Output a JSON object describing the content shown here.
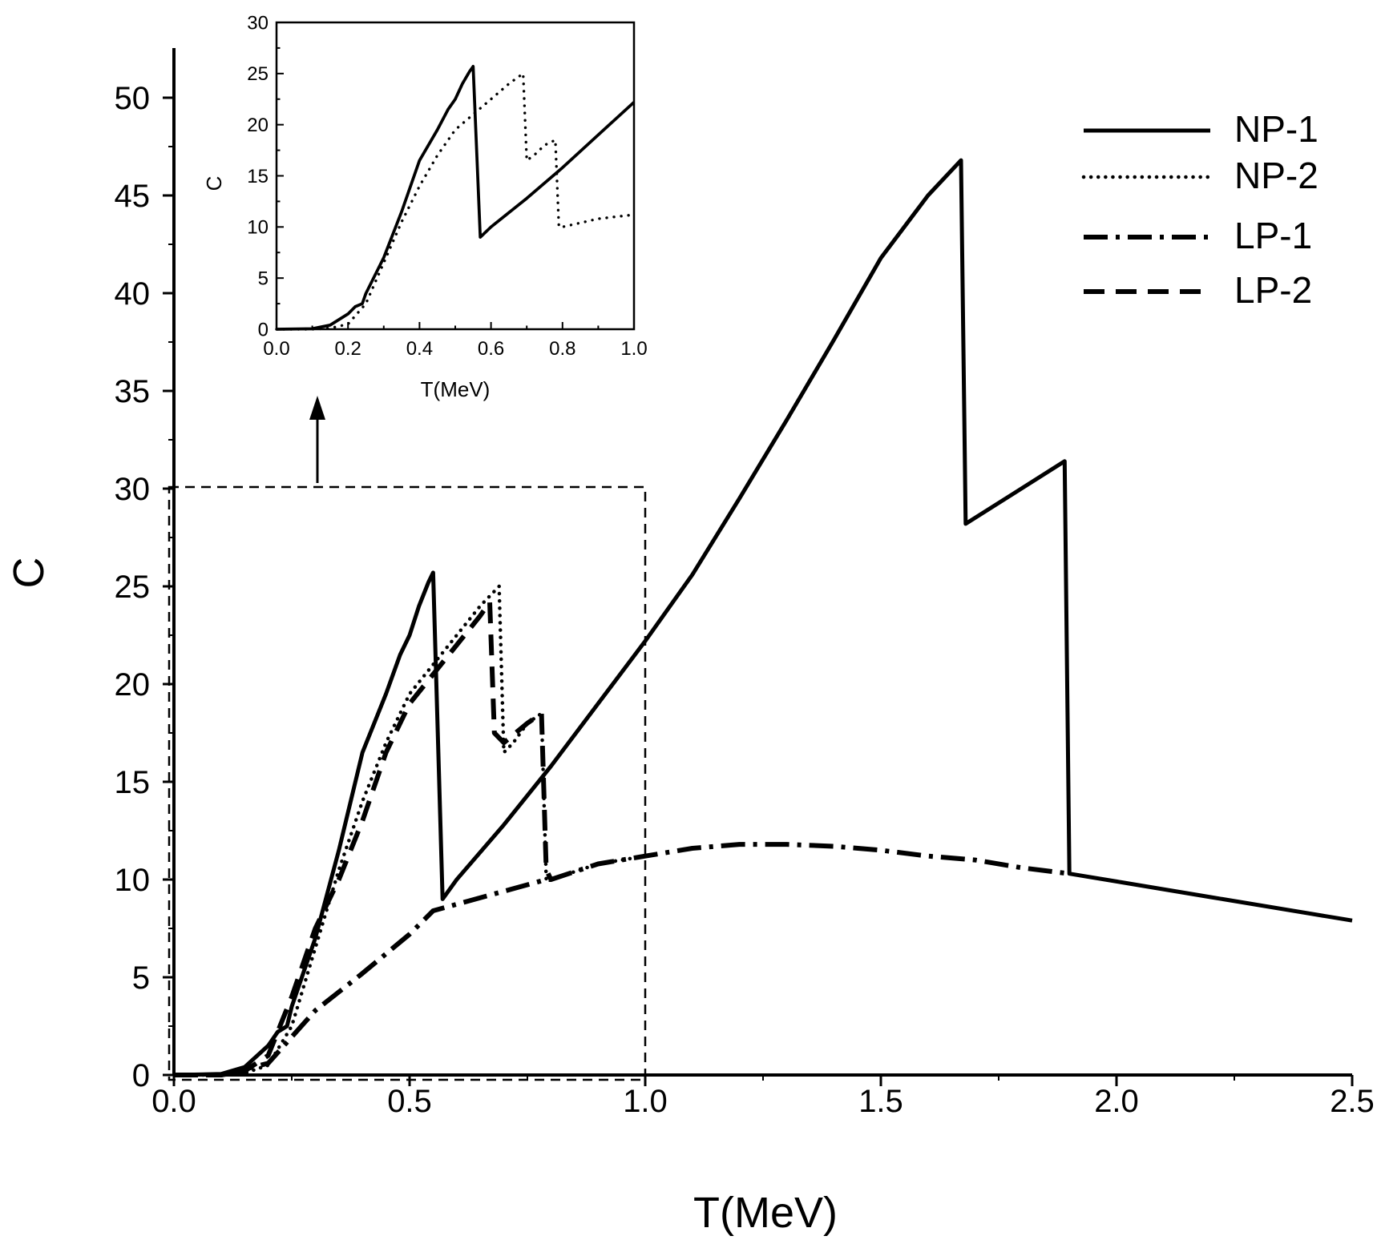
{
  "chart_data": {
    "type": "line",
    "xlabel": "T(MeV)",
    "ylabel": "C",
    "xlim": [
      0,
      2.5
    ],
    "ylim": [
      0,
      52
    ],
    "xticks": [
      "0.0",
      "0.5",
      "1.0",
      "1.5",
      "2.0",
      "2.5"
    ],
    "xtick_values": [
      0,
      0.5,
      1.0,
      1.5,
      2.0,
      2.5
    ],
    "yticks": [
      "0",
      "5",
      "10",
      "15",
      "20",
      "25",
      "30",
      "35",
      "40",
      "45",
      "50"
    ],
    "ytick_values": [
      0,
      5,
      10,
      15,
      20,
      25,
      30,
      35,
      40,
      45,
      50
    ],
    "grid": false,
    "legend_position": "top-right",
    "series": [
      {
        "name": "NP-1",
        "style": "solid",
        "x": [
          0.0,
          0.1,
          0.15,
          0.2,
          0.22,
          0.24,
          0.25,
          0.3,
          0.35,
          0.4,
          0.45,
          0.48,
          0.5,
          0.52,
          0.54,
          0.55,
          0.57,
          0.6,
          0.7,
          0.8,
          0.9,
          1.0,
          1.1,
          1.2,
          1.3,
          1.4,
          1.5,
          1.6,
          1.67,
          1.68,
          1.89,
          1.9,
          2.0,
          2.2,
          2.5
        ],
        "y": [
          0.0,
          0.05,
          0.4,
          1.5,
          2.2,
          2.5,
          3.5,
          7.0,
          11.5,
          16.5,
          19.5,
          21.5,
          22.5,
          24.0,
          25.2,
          25.7,
          9.0,
          10.0,
          12.8,
          15.8,
          19.0,
          22.2,
          25.6,
          29.5,
          33.5,
          37.6,
          41.8,
          45.0,
          46.8,
          28.2,
          31.4,
          10.3,
          9.9,
          9.1,
          7.9
        ]
      },
      {
        "name": "NP-2",
        "style": "dotted",
        "x": [
          0.0,
          0.1,
          0.15,
          0.2,
          0.25,
          0.3,
          0.35,
          0.4,
          0.45,
          0.5,
          0.55,
          0.6,
          0.65,
          0.69,
          0.7,
          0.72,
          0.75,
          0.78,
          0.79,
          0.8,
          0.9,
          1.0
        ],
        "y": [
          0.0,
          0.0,
          0.1,
          0.5,
          2.5,
          6.5,
          10.5,
          14.0,
          17.0,
          19.5,
          21.0,
          22.5,
          24.0,
          25.0,
          16.5,
          17.0,
          18.0,
          18.5,
          10.0,
          10.0,
          10.8,
          11.2
        ]
      },
      {
        "name": "LP-1",
        "style": "dash-dot",
        "x": [
          0.0,
          0.1,
          0.2,
          0.3,
          0.4,
          0.5,
          0.55,
          0.79,
          0.8,
          0.9,
          1.0,
          1.1,
          1.2,
          1.3,
          1.4,
          1.5,
          1.6,
          1.7,
          1.8,
          1.9
        ],
        "y": [
          0.0,
          0.0,
          0.6,
          3.3,
          5.2,
          7.2,
          8.4,
          10.0,
          10.0,
          10.8,
          11.2,
          11.6,
          11.8,
          11.8,
          11.7,
          11.5,
          11.2,
          11.0,
          10.6,
          10.3
        ]
      },
      {
        "name": "LP-2",
        "style": "dashed",
        "x": [
          0.0,
          0.1,
          0.15,
          0.2,
          0.25,
          0.3,
          0.35,
          0.4,
          0.45,
          0.5,
          0.55,
          0.6,
          0.65,
          0.67,
          0.68,
          0.7,
          0.75,
          0.78,
          0.79,
          0.8
        ],
        "y": [
          0.0,
          0.0,
          0.2,
          1.0,
          4.0,
          7.5,
          10.0,
          13.0,
          16.5,
          19.0,
          20.5,
          22.0,
          23.5,
          24.2,
          17.5,
          17.0,
          18.0,
          18.5,
          10.5,
          10.0
        ]
      }
    ],
    "inset": {
      "xlabel": "T(MeV)",
      "ylabel": "C",
      "xlim": [
        0,
        1.0
      ],
      "ylim": [
        0,
        30
      ],
      "xticks": [
        "0.0",
        "0.2",
        "0.4",
        "0.6",
        "0.8",
        "1.0"
      ],
      "xtick_values": [
        0,
        0.2,
        0.4,
        0.6,
        0.8,
        1.0
      ],
      "yticks": [
        "0",
        "5",
        "10",
        "15",
        "20",
        "25",
        "30"
      ],
      "ytick_values": [
        0,
        5,
        10,
        15,
        20,
        25,
        30
      ],
      "series": [
        {
          "name": "NP-1",
          "style": "solid",
          "x": [
            0.0,
            0.1,
            0.15,
            0.2,
            0.22,
            0.24,
            0.25,
            0.3,
            0.35,
            0.4,
            0.45,
            0.48,
            0.5,
            0.52,
            0.54,
            0.55,
            0.57,
            0.6,
            0.7,
            0.8,
            0.9,
            1.0
          ],
          "y": [
            0.0,
            0.05,
            0.4,
            1.5,
            2.2,
            2.5,
            3.5,
            7.0,
            11.5,
            16.5,
            19.5,
            21.5,
            22.5,
            24.0,
            25.2,
            25.7,
            9.0,
            10.0,
            12.8,
            15.8,
            19.0,
            22.2
          ]
        },
        {
          "name": "NP-2",
          "style": "dotted",
          "x": [
            0.0,
            0.1,
            0.15,
            0.2,
            0.25,
            0.3,
            0.35,
            0.4,
            0.45,
            0.5,
            0.55,
            0.6,
            0.65,
            0.69,
            0.7,
            0.72,
            0.75,
            0.78,
            0.79,
            0.8,
            0.9,
            1.0
          ],
          "y": [
            0.0,
            0.0,
            0.1,
            0.5,
            2.5,
            6.5,
            10.5,
            14.0,
            17.0,
            19.5,
            21.0,
            22.5,
            24.0,
            25.0,
            16.5,
            17.0,
            18.0,
            18.5,
            10.0,
            10.0,
            10.8,
            11.2
          ]
        }
      ]
    },
    "zoom_box": {
      "x": [
        0,
        1.0
      ],
      "y": [
        0,
        30
      ]
    }
  }
}
